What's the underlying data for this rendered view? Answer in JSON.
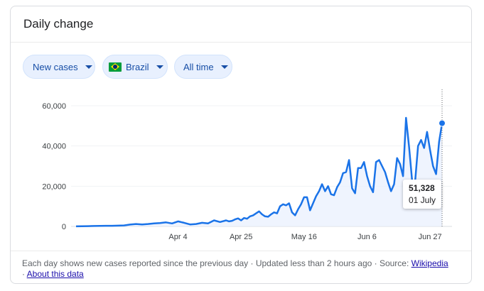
{
  "card": {
    "title": "Daily change"
  },
  "filters": [
    {
      "label": "New cases",
      "has_flag": false
    },
    {
      "label": "Brazil",
      "has_flag": true,
      "flag_icon": "brazil-flag-icon"
    },
    {
      "label": "All time",
      "has_flag": false
    }
  ],
  "tooltip": {
    "value": "51,328",
    "date": "01 July"
  },
  "footer": {
    "text": "Each day shows new cases reported since the previous day · Updated less than 2 hours ago  ·  Source: ",
    "source_link": "Wikipedia",
    "sep": " · ",
    "about_link": "About this data"
  },
  "colors": {
    "line": "#1a73e8",
    "fill": "#e8f0fe",
    "grid": "#f1f3f4",
    "axis_text": "#3c4043"
  },
  "chart_data": {
    "type": "area",
    "title": "",
    "xlabel": "",
    "ylabel": "",
    "ylim": [
      0,
      62000
    ],
    "yticks": [
      0,
      20000,
      40000,
      60000
    ],
    "ytick_labels": [
      "0",
      "20,000",
      "40,000",
      "60,000"
    ],
    "xticks": [
      {
        "day": 34,
        "label": "Apr 4"
      },
      {
        "day": 55,
        "label": "Apr 25"
      },
      {
        "day": 76,
        "label": "May 16"
      },
      {
        "day": 97,
        "label": "Jun 6"
      },
      {
        "day": 118,
        "label": "Jun 27"
      }
    ],
    "grid": true,
    "highlight": {
      "day": 122,
      "value": 51328
    },
    "series": [
      {
        "name": "",
        "x": [
          0,
          2,
          4,
          6,
          8,
          10,
          12,
          14,
          16,
          18,
          20,
          22,
          24,
          26,
          28,
          30,
          32,
          34,
          36,
          38,
          40,
          42,
          44,
          46,
          48,
          50,
          51,
          52,
          53,
          54,
          55,
          56,
          57,
          58,
          59,
          60,
          61,
          62,
          63,
          64,
          65,
          66,
          67,
          68,
          69,
          70,
          71,
          72,
          73,
          74,
          75,
          76,
          77,
          78,
          79,
          80,
          81,
          82,
          83,
          84,
          85,
          86,
          87,
          88,
          89,
          90,
          91,
          92,
          93,
          94,
          95,
          96,
          97,
          98,
          99,
          100,
          101,
          102,
          103,
          104,
          105,
          106,
          107,
          108,
          109,
          110,
          111,
          112,
          113,
          114,
          115,
          116,
          117,
          118,
          119,
          120,
          121,
          122
        ],
        "values": [
          50,
          100,
          150,
          200,
          250,
          300,
          300,
          400,
          500,
          900,
          1200,
          1000,
          1200,
          1500,
          1700,
          2000,
          1500,
          2500,
          1800,
          1000,
          1200,
          1800,
          1500,
          3000,
          2200,
          3000,
          2500,
          2800,
          3500,
          4000,
          3000,
          4200,
          3800,
          5000,
          5500,
          6500,
          7500,
          6000,
          5000,
          4800,
          6000,
          7000,
          6500,
          10000,
          11000,
          10500,
          11500,
          7000,
          5500,
          8500,
          11000,
          14500,
          14500,
          8000,
          11500,
          15000,
          17500,
          21000,
          17500,
          20000,
          16000,
          15500,
          19500,
          22000,
          26500,
          27000,
          33000,
          19000,
          16500,
          29000,
          29000,
          32000,
          25000,
          20000,
          17000,
          32000,
          33000,
          30000,
          27000,
          22000,
          17500,
          21000,
          34000,
          31000,
          25000,
          54000,
          39500,
          23000,
          22000,
          40000,
          43000,
          39000,
          47000,
          38000,
          30000,
          26000,
          42000,
          51328
        ]
      }
    ]
  }
}
